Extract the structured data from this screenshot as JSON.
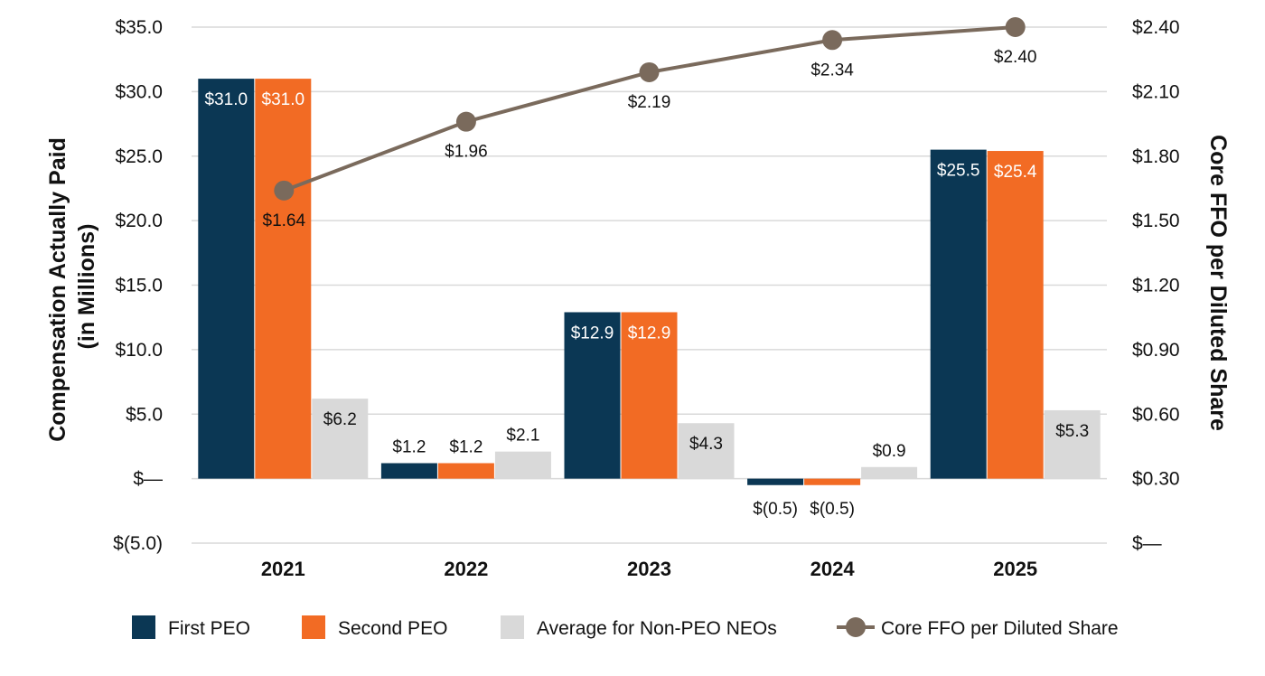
{
  "chart_data": {
    "type": "bar",
    "categories": [
      "2021",
      "2022",
      "2023",
      "2024",
      "2025"
    ],
    "series": [
      {
        "name": "First PEO",
        "color": "#0b3754",
        "values": [
          31.0,
          1.2,
          12.9,
          -0.5,
          25.5
        ],
        "labels": [
          "$31.0",
          "$1.2",
          "$12.9",
          "$(0.5)",
          "$25.5"
        ]
      },
      {
        "name": "Second PEO",
        "color": "#f26b24",
        "values": [
          31.0,
          1.2,
          12.9,
          -0.5,
          25.4
        ],
        "labels": [
          "$31.0",
          "$1.2",
          "$12.9",
          "$(0.5)",
          "$25.4"
        ]
      },
      {
        "name": "Average for Non-PEO NEOs",
        "color": "#d9d9d9",
        "values": [
          6.2,
          2.1,
          4.3,
          0.9,
          5.3
        ],
        "labels": [
          "$6.2",
          "$2.1",
          "$4.3",
          "$0.9",
          "$5.3"
        ]
      }
    ],
    "line_series": {
      "name": "Core FFO per Diluted Share",
      "type": "line",
      "axis": "right",
      "color": "#7a6a5c",
      "values": [
        1.64,
        1.96,
        2.19,
        2.34,
        2.4
      ],
      "labels": [
        "$1.64",
        "$1.96",
        "$2.19",
        "$2.34",
        "$2.40"
      ]
    },
    "ylabel": "Compensation Actually Paid\n(in Millions)",
    "y2label": "Core FFO per Diluted Share",
    "ylim": [
      -5,
      35
    ],
    "y2lim": [
      0,
      2.4
    ],
    "yticks": [
      {
        "value": 35,
        "label": "$35.0"
      },
      {
        "value": 30,
        "label": "$30.0"
      },
      {
        "value": 25,
        "label": "$25.0"
      },
      {
        "value": 20,
        "label": "$20.0"
      },
      {
        "value": 15,
        "label": "$15.0"
      },
      {
        "value": 10,
        "label": "$10.0"
      },
      {
        "value": 5,
        "label": "$5.0"
      },
      {
        "value": 0,
        "label": "$—"
      },
      {
        "value": -5,
        "label": "$(5.0)"
      }
    ],
    "y2ticks": [
      {
        "value": 2.4,
        "label": "$2.40"
      },
      {
        "value": 2.1,
        "label": "$2.10"
      },
      {
        "value": 1.8,
        "label": "$1.80"
      },
      {
        "value": 1.5,
        "label": "$1.50"
      },
      {
        "value": 1.2,
        "label": "$1.20"
      },
      {
        "value": 0.9,
        "label": "$0.90"
      },
      {
        "value": 0.6,
        "label": "$0.60"
      },
      {
        "value": 0.3,
        "label": "$0.30"
      },
      {
        "value": 0,
        "label": "$—"
      }
    ],
    "grid": true,
    "legend": "bottom"
  }
}
